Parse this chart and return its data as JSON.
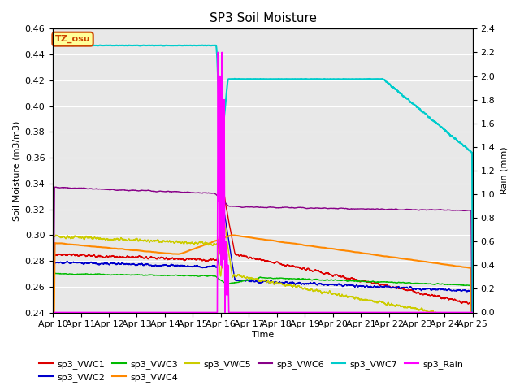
{
  "title": "SP3 Soil Moisture",
  "xlabel": "Time",
  "ylabel_left": "Soil Moisture (m3/m3)",
  "ylabel_right": "Rain (mm)",
  "xlim_days": [
    0,
    15
  ],
  "ylim_left": [
    0.24,
    0.46
  ],
  "ylim_right": [
    0.0,
    2.4
  ],
  "x_tick_labels": [
    "Apr 10",
    "Apr 11",
    "Apr 12",
    "Apr 13",
    "Apr 14",
    "Apr 15",
    "Apr 16",
    "Apr 17",
    "Apr 18",
    "Apr 19",
    "Apr 20",
    "Apr 21",
    "Apr 22",
    "Apr 23",
    "Apr 24",
    "Apr 25"
  ],
  "bg_color": "#e8e8e8",
  "annotation_text": "TZ_osu",
  "annotation_bg": "#ffff99",
  "annotation_border": "#cc4400",
  "series": {
    "sp3_VWC1": {
      "color": "#dd0000",
      "lw": 1.0
    },
    "sp3_VWC2": {
      "color": "#0000cc",
      "lw": 1.0
    },
    "sp3_VWC3": {
      "color": "#00bb00",
      "lw": 1.0
    },
    "sp3_VWC4": {
      "color": "#ff8800",
      "lw": 1.5
    },
    "sp3_VWC5": {
      "color": "#cccc00",
      "lw": 1.0
    },
    "sp3_VWC6": {
      "color": "#880088",
      "lw": 1.0
    },
    "sp3_VWC7": {
      "color": "#00cccc",
      "lw": 1.5
    },
    "sp3_Rain": {
      "color": "#ff00ff",
      "lw": 1.2
    }
  }
}
